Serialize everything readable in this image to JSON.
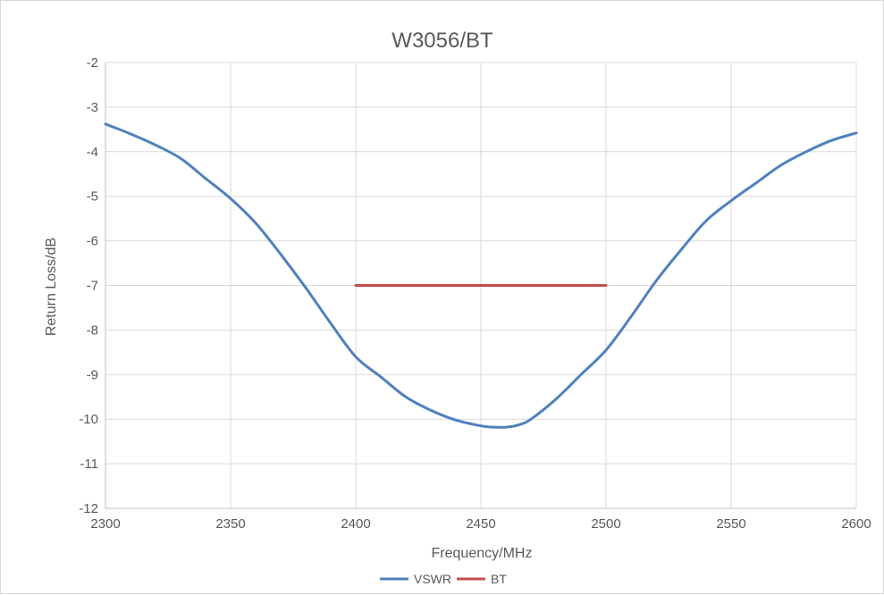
{
  "chart_data": {
    "type": "line",
    "title": "W3056/BT",
    "xlabel": "Frequency/MHz",
    "ylabel": "Return Loss/dB",
    "xlim": [
      2300,
      2600
    ],
    "ylim": [
      -12,
      -2
    ],
    "xticks": [
      2300,
      2350,
      2400,
      2450,
      2500,
      2550,
      2600
    ],
    "yticks": [
      -2,
      -3,
      -4,
      -5,
      -6,
      -7,
      -8,
      -9,
      -10,
      -11,
      -12
    ],
    "grid": true,
    "legend_position": "bottom",
    "series": [
      {
        "name": "VSWR",
        "color": "#4f81bd",
        "x": [
          2300,
          2310,
          2320,
          2330,
          2340,
          2350,
          2360,
          2370,
          2380,
          2390,
          2400,
          2410,
          2420,
          2430,
          2440,
          2450,
          2455,
          2460,
          2465,
          2470,
          2480,
          2490,
          2500,
          2510,
          2520,
          2530,
          2540,
          2550,
          2560,
          2570,
          2580,
          2590,
          2600
        ],
        "y": [
          -3.38,
          -3.6,
          -3.85,
          -4.15,
          -4.6,
          -5.05,
          -5.6,
          -6.3,
          -7.05,
          -7.85,
          -8.6,
          -9.05,
          -9.5,
          -9.8,
          -10.02,
          -10.15,
          -10.18,
          -10.18,
          -10.13,
          -10.0,
          -9.55,
          -9.0,
          -8.45,
          -7.7,
          -6.9,
          -6.2,
          -5.55,
          -5.1,
          -4.7,
          -4.3,
          -4.0,
          -3.75,
          -3.58
        ]
      },
      {
        "name": "BT",
        "color": "#c0504d",
        "x": [
          2400,
          2500
        ],
        "y": [
          -7,
          -7
        ]
      }
    ]
  }
}
